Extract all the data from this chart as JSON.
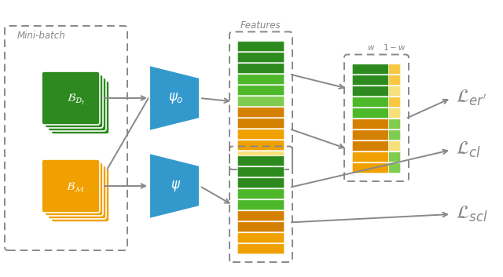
{
  "bg_color": "#ffffff",
  "arrow_color": "#888888",
  "dashed_box_color": "#888888",
  "blue_shape_color": "#3399cc",
  "green_dark": "#2d8a1e",
  "green_medium": "#4db82a",
  "green_light": "#80cc50",
  "orange_dark": "#d48000",
  "orange_medium": "#f0a000",
  "orange_light": "#f8c840",
  "yellow_light": "#f5e07a",
  "label_color": "#888888",
  "mini_batch_label": "Mini-batch",
  "features_label": "Features"
}
